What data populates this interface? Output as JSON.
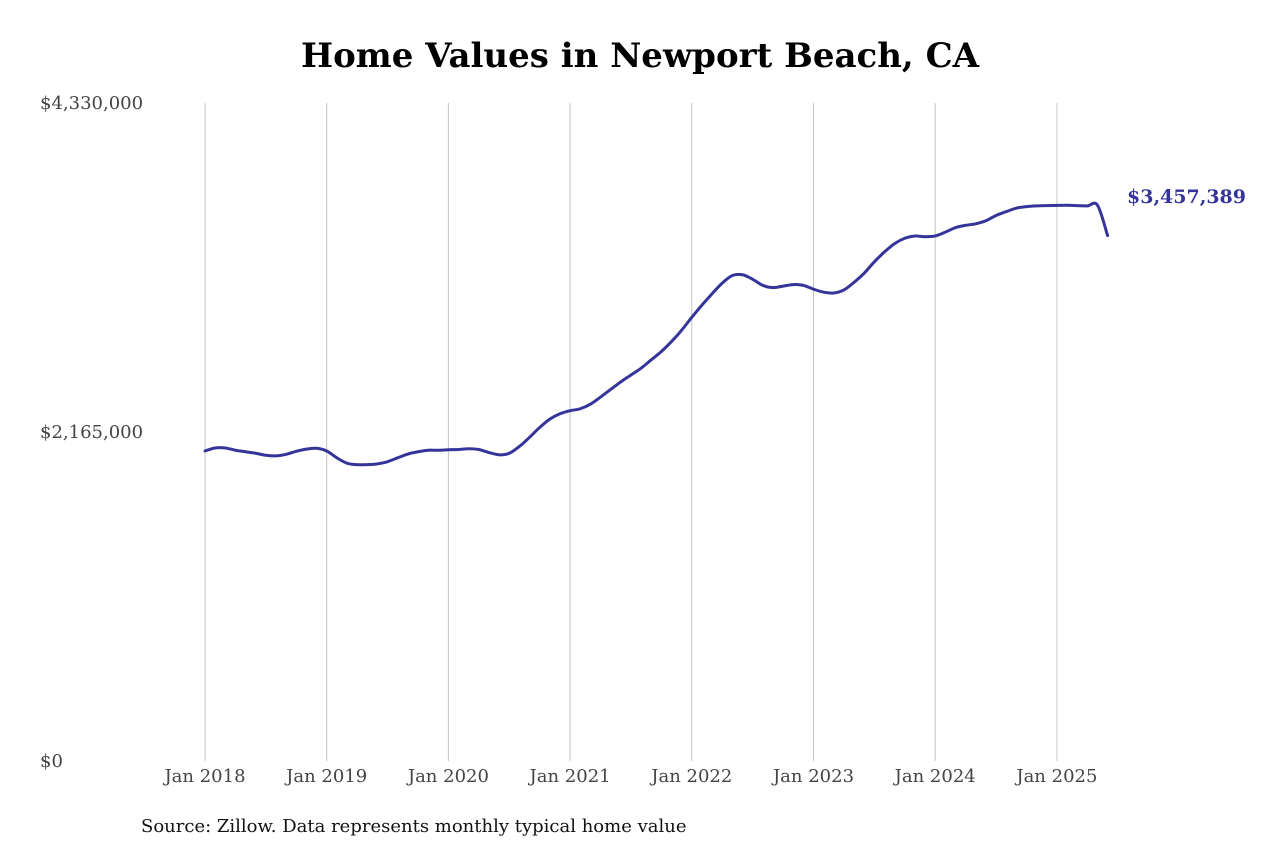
{
  "chart_data": {
    "type": "line",
    "title": "Home Values in Newport Beach, CA",
    "source_note": "Source: Zillow. Data represents monthly typical home value",
    "xlabel": "",
    "ylabel": "",
    "ylim": [
      0,
      4330000
    ],
    "y_ticks": [
      {
        "value": 0,
        "label": "$0"
      },
      {
        "value": 2165000,
        "label": "$2,165,000"
      },
      {
        "value": 4330000,
        "label": "$4,330,000"
      }
    ],
    "x_ticks": [
      {
        "value": "2018-01",
        "label": "Jan 2018"
      },
      {
        "value": "2019-01",
        "label": "Jan 2019"
      },
      {
        "value": "2020-01",
        "label": "Jan 2020"
      },
      {
        "value": "2021-01",
        "label": "Jan 2021"
      },
      {
        "value": "2022-01",
        "label": "Jan 2022"
      },
      {
        "value": "2023-01",
        "label": "Jan 2023"
      },
      {
        "value": "2024-01",
        "label": "Jan 2024"
      },
      {
        "value": "2025-01",
        "label": "Jan 2025"
      }
    ],
    "grid": {
      "vertical": true,
      "horizontal": false
    },
    "line_color": "#35349a",
    "end_label": "$3,457,389",
    "series": [
      {
        "x": [
          "2018-01",
          "2018-02",
          "2018-03",
          "2018-04",
          "2018-05",
          "2018-06",
          "2018-07",
          "2018-08",
          "2018-09",
          "2018-10",
          "2018-11",
          "2018-12",
          "2019-01",
          "2019-02",
          "2019-03",
          "2019-04",
          "2019-05",
          "2019-06",
          "2019-07",
          "2019-08",
          "2019-09",
          "2019-10",
          "2019-11",
          "2019-12",
          "2020-01",
          "2020-02",
          "2020-03",
          "2020-04",
          "2020-05",
          "2020-06",
          "2020-07",
          "2020-08",
          "2020-09",
          "2020-10",
          "2020-11",
          "2020-12",
          "2021-01",
          "2021-02",
          "2021-03",
          "2021-04",
          "2021-05",
          "2021-06",
          "2021-07",
          "2021-08",
          "2021-09",
          "2021-10",
          "2021-11",
          "2021-12",
          "2022-01",
          "2022-02",
          "2022-03",
          "2022-04",
          "2022-05",
          "2022-06",
          "2022-07",
          "2022-08",
          "2022-09",
          "2022-10",
          "2022-11",
          "2022-12",
          "2023-01",
          "2023-02",
          "2023-03",
          "2023-04",
          "2023-05",
          "2023-06",
          "2023-07",
          "2023-08",
          "2023-09",
          "2023-10",
          "2023-11",
          "2023-12",
          "2024-01",
          "2024-02",
          "2024-03",
          "2024-04",
          "2024-05",
          "2024-06",
          "2024-07",
          "2024-08",
          "2024-09",
          "2024-10",
          "2024-11",
          "2024-12",
          "2025-01",
          "2025-02",
          "2025-03",
          "2025-04",
          "2025-05",
          "2025-06"
        ],
        "values": [
          2040000,
          2060000,
          2060000,
          2045000,
          2035000,
          2025000,
          2012000,
          2008000,
          2018000,
          2038000,
          2052000,
          2058000,
          2040000,
          1995000,
          1960000,
          1950000,
          1950000,
          1955000,
          1970000,
          1995000,
          2020000,
          2035000,
          2045000,
          2045000,
          2048000,
          2050000,
          2055000,
          2050000,
          2030000,
          2015000,
          2025000,
          2070000,
          2130000,
          2195000,
          2250000,
          2285000,
          2305000,
          2318000,
          2348000,
          2395000,
          2445000,
          2495000,
          2540000,
          2585000,
          2640000,
          2695000,
          2760000,
          2835000,
          2920000,
          3000000,
          3075000,
          3145000,
          3195000,
          3200000,
          3170000,
          3130000,
          3115000,
          3125000,
          3135000,
          3130000,
          3105000,
          3085000,
          3080000,
          3100000,
          3150000,
          3210000,
          3285000,
          3350000,
          3405000,
          3440000,
          3455000,
          3450000,
          3455000,
          3480000,
          3510000,
          3525000,
          3535000,
          3555000,
          3590000,
          3615000,
          3638000,
          3648000,
          3653000,
          3655000,
          3656000,
          3657000,
          3655000,
          3653000,
          3657389,
          3457389
        ]
      }
    ]
  }
}
